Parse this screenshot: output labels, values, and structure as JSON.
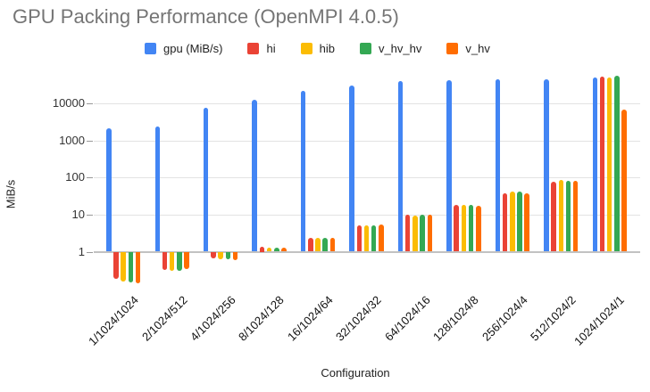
{
  "title": "GPU Packing Performance (OpenMPI 4.0.5)",
  "chart_data": {
    "type": "bar",
    "scale": "log",
    "title": "GPU Packing Performance (OpenMPI 4.0.5)",
    "xlabel": "Configuration",
    "ylabel": "MiB/s",
    "yticks": [
      1,
      10,
      100,
      1000,
      10000
    ],
    "ylim": [
      0.1,
      60000
    ],
    "grid": true,
    "legend_position": "top",
    "categories": [
      "1/1024/1024",
      "2/1024/512",
      "4/1024/256",
      "8/1024/128",
      "16/1024/64",
      "32/1024/32",
      "64/1024/16",
      "128/1024/8",
      "256/1024/4",
      "512/1024/2",
      "1024/1024/1"
    ],
    "series": [
      {
        "name": "gpu (MiB/s)",
        "color": "#4285F4",
        "values": [
          2100,
          2400,
          7700,
          12500,
          22000,
          31000,
          40000,
          42000,
          46000,
          44000,
          49000
        ]
      },
      {
        "name": "hi",
        "color": "#EA4335",
        "values": [
          0.18,
          0.32,
          0.65,
          1.35,
          2.35,
          5.0,
          10,
          18,
          38,
          75,
          53000
        ]
      },
      {
        "name": "hib",
        "color": "#FBBC04",
        "values": [
          0.16,
          0.31,
          0.63,
          1.3,
          2.3,
          5.0,
          9.6,
          18,
          42,
          85,
          51000
        ]
      },
      {
        "name": "v_hv_hv",
        "color": "#34A853",
        "values": [
          0.15,
          0.31,
          0.62,
          1.25,
          2.35,
          5.2,
          10.2,
          18.5,
          41,
          82,
          55000
        ]
      },
      {
        "name": "v_hv",
        "color": "#FF6D01",
        "values": [
          0.14,
          0.34,
          0.6,
          1.27,
          2.3,
          5.4,
          10.2,
          17.5,
          38,
          80,
          7000
        ]
      }
    ]
  }
}
